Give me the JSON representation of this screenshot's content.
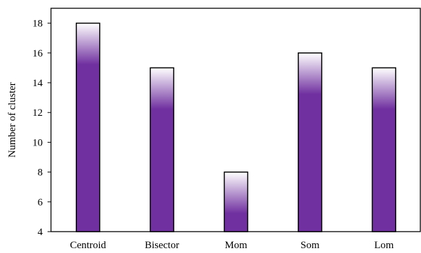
{
  "chart_data": {
    "type": "bar",
    "title": "",
    "xlabel": "",
    "ylabel": "Number of cluster",
    "categories": [
      "Centroid",
      "Bisector",
      "Mom",
      "Som",
      "Lom"
    ],
    "values": [
      18,
      15,
      8,
      16,
      15
    ],
    "ylim": [
      4,
      19
    ],
    "yticks": [
      4,
      6,
      8,
      10,
      12,
      14,
      16,
      18
    ],
    "grid": false,
    "legend": "none",
    "colors": {
      "bar": "#7030a0",
      "bar_top": "#ffffff",
      "bar_outline": "#000000",
      "frame": "#000000"
    }
  }
}
